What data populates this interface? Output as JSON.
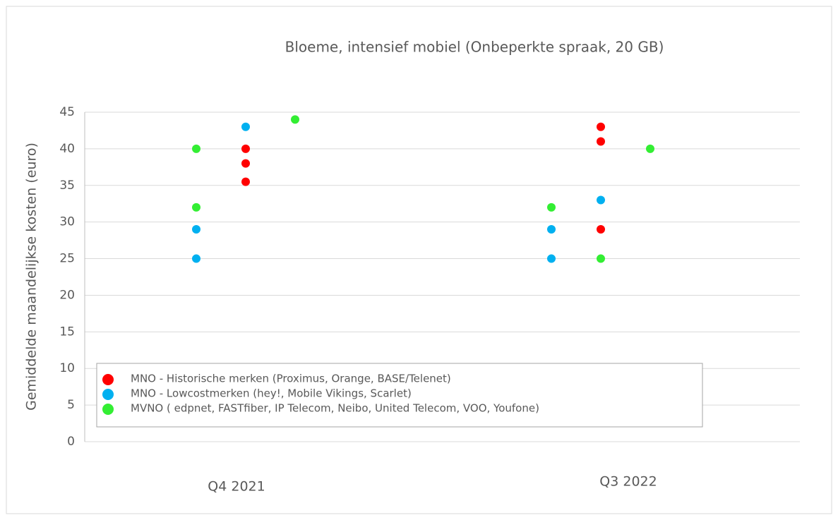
{
  "chart_data": {
    "type": "scatter",
    "title": "Bloeme, intensief mobiel (Onbeperkte spraak, 20 GB)",
    "y_label": "Gemiddelde maandelijkse kosten (euro)",
    "categories": [
      "Q4 2021",
      "Q3 2022"
    ],
    "ylim": [
      0,
      45
    ],
    "yticks": [
      0,
      5,
      10,
      15,
      20,
      25,
      30,
      35,
      40,
      45
    ],
    "grid": true,
    "legend": "bottom-left",
    "series": [
      {
        "name": "MNO - Historische merken (Proximus, Orange, BASE/Telenet)",
        "color": "#ff0000",
        "values": [
          [
            null,
            [
              40,
              38,
              35.5
            ],
            null
          ],
          [
            null,
            [
              43,
              41,
              29
            ],
            null
          ]
        ]
      },
      {
        "name": "MNO - Lowcostmerken (hey!, Mobile Vikings, Scarlet)",
        "color": "#00b0f0",
        "values": [
          [
            [
              29,
              25
            ],
            [
              43
            ],
            null
          ],
          [
            [
              29,
              25
            ],
            [
              33
            ],
            null
          ]
        ]
      },
      {
        "name": "MVNO ( edpnet,  FASTfiber, IP Telecom, Neibo, United Telecom, VOO, Youfone)",
        "color": "#33ee33",
        "values": [
          [
            [
              40,
              32
            ],
            null,
            [
              44
            ]
          ],
          [
            [
              32
            ],
            [
              25
            ],
            [
              40
            ]
          ]
        ]
      }
    ]
  }
}
